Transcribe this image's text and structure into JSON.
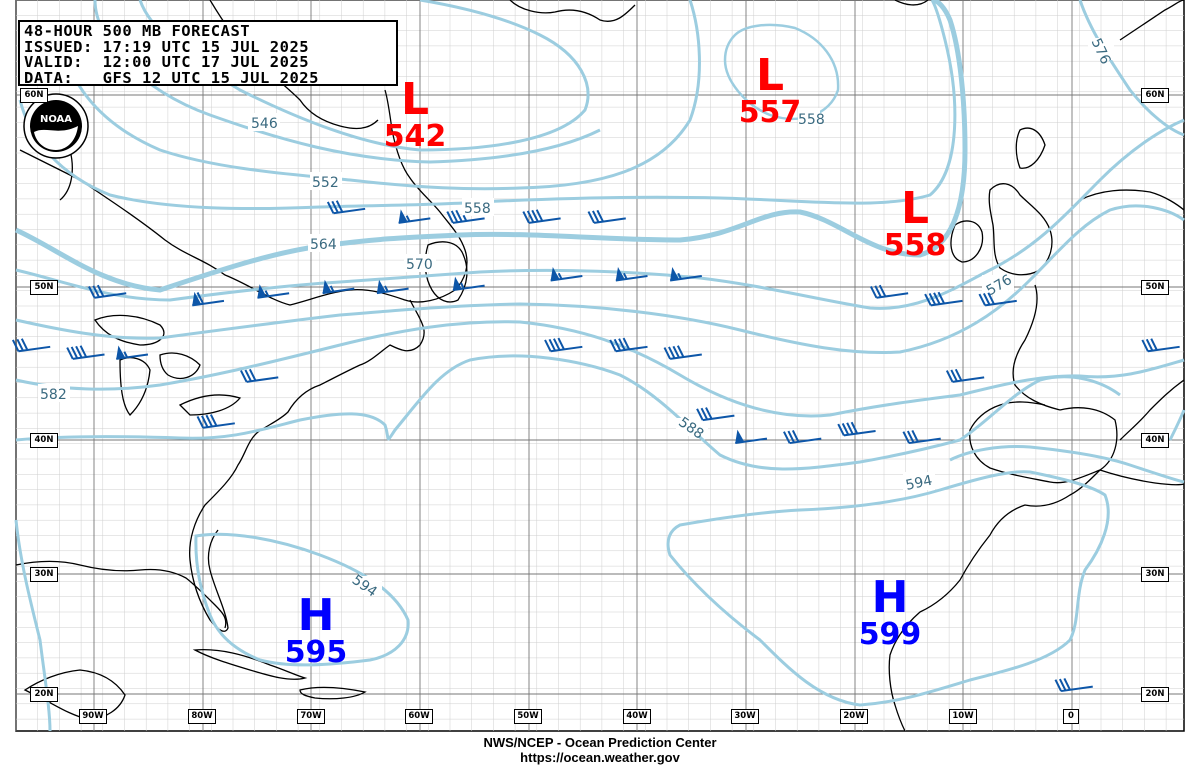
{
  "header": {
    "lines": [
      "48-HOUR 500 MB FORECAST",
      "ISSUED: 17:19 UTC 15 JUL 2025",
      "VALID:  12:00 UTC 17 JUL 2025",
      "DATA:   GFS 12 UTC 15 JUL 2025"
    ]
  },
  "footer": {
    "line1": "NWS/NCEP - Ocean Prediction Center",
    "line2": "https://ocean.weather.gov"
  },
  "logo": {
    "text": "NOAA",
    "icon": "noaa-logo"
  },
  "colors": {
    "contour": "#9ccde0",
    "contour_text": "#3a6a80",
    "barb": "#0d56a8",
    "low": "#ff0000",
    "high": "#0000ff",
    "grid": "#bbbbbb",
    "land": "#000000"
  },
  "lat_labels": [
    "60N",
    "50N",
    "40N",
    "30N",
    "20N"
  ],
  "lon_labels": [
    "90W",
    "80W",
    "70W",
    "60W",
    "50W",
    "40W",
    "30W",
    "20W",
    "10W",
    "0"
  ],
  "contour_labels": [
    "546",
    "552",
    "558",
    "564",
    "570",
    "576",
    "582",
    "588",
    "594",
    "594",
    "576",
    "558"
  ],
  "systems": [
    {
      "type": "L",
      "value": "542"
    },
    {
      "type": "L",
      "value": "557"
    },
    {
      "type": "L",
      "value": "558"
    },
    {
      "type": "H",
      "value": "595"
    },
    {
      "type": "H",
      "value": "599"
    }
  ],
  "wind_barbs": [
    {
      "lon": -66,
      "lat": 54,
      "kt": 30
    },
    {
      "lon": -60,
      "lat": 53.5,
      "kt": 55
    },
    {
      "lon": -55,
      "lat": 53.5,
      "kt": 35
    },
    {
      "lon": -48,
      "lat": 53.5,
      "kt": 40
    },
    {
      "lon": -42,
      "lat": 53.5,
      "kt": 30
    },
    {
      "lon": -88,
      "lat": 49.5,
      "kt": 30
    },
    {
      "lon": -79,
      "lat": 49,
      "kt": 60
    },
    {
      "lon": -73,
      "lat": 49.5,
      "kt": 55
    },
    {
      "lon": -67,
      "lat": 49.8,
      "kt": 55
    },
    {
      "lon": -62,
      "lat": 49.8,
      "kt": 55
    },
    {
      "lon": -55,
      "lat": 50,
      "kt": 55
    },
    {
      "lon": -46,
      "lat": 50.5,
      "kt": 55
    },
    {
      "lon": -40,
      "lat": 50.5,
      "kt": 55
    },
    {
      "lon": -35,
      "lat": 50.5,
      "kt": 55
    },
    {
      "lon": -16,
      "lat": 49.5,
      "kt": 30
    },
    {
      "lon": -11,
      "lat": 49,
      "kt": 40
    },
    {
      "lon": -6,
      "lat": 49,
      "kt": 30
    },
    {
      "lon": -95,
      "lat": 46,
      "kt": 30
    },
    {
      "lon": -90,
      "lat": 45.5,
      "kt": 40
    },
    {
      "lon": -86,
      "lat": 45.5,
      "kt": 55
    },
    {
      "lon": -74,
      "lat": 44,
      "kt": 30
    },
    {
      "lon": -46,
      "lat": 46,
      "kt": 40
    },
    {
      "lon": -40,
      "lat": 46,
      "kt": 40
    },
    {
      "lon": -35,
      "lat": 45.5,
      "kt": 40
    },
    {
      "lon": -32,
      "lat": 41.5,
      "kt": 30
    },
    {
      "lon": -29,
      "lat": 40,
      "kt": 50
    },
    {
      "lon": -24,
      "lat": 40,
      "kt": 30
    },
    {
      "lon": -19,
      "lat": 40.5,
      "kt": 40
    },
    {
      "lon": -13,
      "lat": 40,
      "kt": 30
    },
    {
      "lon": -9,
      "lat": 44,
      "kt": 30
    },
    {
      "lon": 9,
      "lat": 46,
      "kt": 30
    },
    {
      "lon": -78,
      "lat": 41,
      "kt": 40
    },
    {
      "lon": 1,
      "lat": 20.5,
      "kt": 30
    }
  ]
}
